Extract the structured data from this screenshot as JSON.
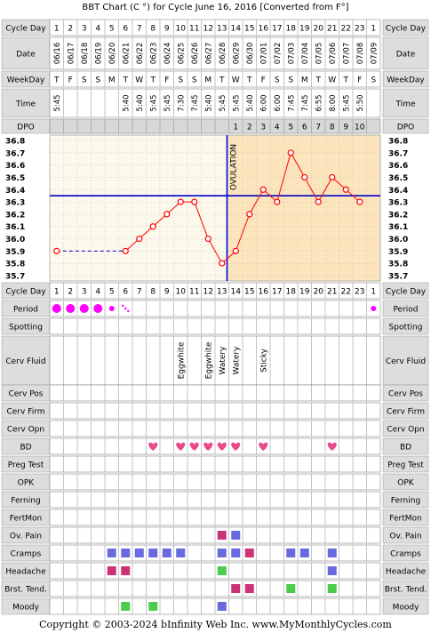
{
  "title": "BBT Chart (C °) for Cycle June 16, 2016  [Converted from F°]",
  "footer": "Copyright © 2003-2024 bInfinity Web Inc.     www.MyMonthlyCycles.com",
  "row_labels": {
    "cycle_day": "Cycle Day",
    "date": "Date",
    "weekday": "WeekDay",
    "time": "Time",
    "dpo": "DPO",
    "period": "Period",
    "spotting": "Spotting",
    "cerv_fluid": "Cerv Fluid",
    "cerv_pos": "Cerv Pos",
    "cerv_firm": "Cerv Firm",
    "cerv_opn": "Cerv Opn",
    "bd": "BD",
    "preg_test": "Preg Test",
    "opk": "OPK",
    "ferning": "Ferning",
    "fertmon": "FertMon",
    "ov_pain": "Ov. Pain",
    "cramps": "Cramps",
    "headache": "Headache",
    "brst_tend": "Brst. Tend.",
    "moody": "Moody"
  },
  "ovulation_label": "OVULATION",
  "colors": {
    "line": "#ff0000",
    "dot_fill": "#ffffff",
    "pre_bg": "#fdf8ec",
    "post_bg": "#fce5bd",
    "coverline": "#0000cc",
    "grid": "#aaaaaa",
    "period": "#ff00ff",
    "heart": "#e84a8a",
    "cramps": "#6a6adf",
    "crimson_sq": "#cc3377",
    "green_sq": "#4ccc4c",
    "label_bg": "#dddddd"
  },
  "chart_data": {
    "type": "line",
    "cycle_days": [
      "1",
      "2",
      "3",
      "4",
      "5",
      "6",
      "7",
      "8",
      "9",
      "10",
      "11",
      "12",
      "13",
      "14",
      "15",
      "16",
      "17",
      "18",
      "19",
      "20",
      "21",
      "22",
      "23",
      "1"
    ],
    "dates": [
      "06/16",
      "06/17",
      "06/18",
      "06/19",
      "06/20",
      "06/21",
      "06/22",
      "06/23",
      "06/24",
      "06/25",
      "06/26",
      "06/27",
      "06/28",
      "06/29",
      "06/30",
      "07/01",
      "07/02",
      "07/03",
      "07/04",
      "07/05",
      "07/06",
      "07/07",
      "07/08",
      "07/09"
    ],
    "weekdays": [
      "T",
      "F",
      "S",
      "S",
      "M",
      "T",
      "W",
      "T",
      "F",
      "S",
      "S",
      "M",
      "T",
      "W",
      "T",
      "F",
      "S",
      "S",
      "M",
      "T",
      "W",
      "T",
      "F",
      "S"
    ],
    "times": [
      "5:45",
      "",
      "",
      "",
      "",
      "5:40",
      "5:40",
      "5:45",
      "5:45",
      "7:30",
      "7:45",
      "5:40",
      "5:45",
      "5:45",
      "5:40",
      "6:00",
      "6:00",
      "7:45",
      "7:45",
      "6:55",
      "8:00",
      "5:45",
      "5:50",
      ""
    ],
    "dpo": [
      "",
      "",
      "",
      "",
      "",
      "",
      "",
      "",
      "",
      "",
      "",
      "",
      "",
      "1",
      "2",
      "3",
      "4",
      "5",
      "6",
      "7",
      "8",
      "9",
      "10",
      ""
    ],
    "temps": [
      35.9,
      null,
      null,
      null,
      null,
      35.9,
      36.0,
      36.1,
      36.2,
      36.3,
      36.3,
      36.0,
      35.8,
      35.9,
      36.2,
      36.4,
      36.3,
      36.7,
      36.5,
      36.3,
      36.5,
      36.4,
      36.3,
      null
    ],
    "y_ticks": [
      "36.8",
      "36.7",
      "36.6",
      "36.5",
      "36.4",
      "36.3",
      "36.2",
      "36.1",
      "36.0",
      "35.9",
      "35.8",
      "35.7"
    ],
    "ylim": [
      35.7,
      36.8
    ],
    "coverline": 36.35,
    "ovulation_day_index": 12,
    "interpolated_span": [
      0,
      5
    ],
    "period": [
      "large",
      "large",
      "large",
      "large",
      "small",
      "spotting",
      "",
      "",
      "",
      "",
      "",
      "",
      "",
      "",
      "",
      "",
      "",
      "",
      "",
      "",
      "",
      "",
      "",
      "small"
    ],
    "cerv_fluid": [
      "",
      "",
      "",
      "",
      "",
      "",
      "",
      "",
      "",
      "Eggwhite",
      "",
      "Eggwhite",
      "Watery",
      "Watery",
      "",
      "Sticky",
      "",
      "",
      "",
      "",
      "",
      "",
      "",
      ""
    ],
    "bd": [
      8,
      10,
      11,
      12,
      13,
      14,
      16,
      21
    ],
    "ov_pain": [
      {
        "day": 13,
        "c": "crimson_sq"
      },
      {
        "day": 14,
        "c": "cramps"
      }
    ],
    "cramps": [
      {
        "day": 5,
        "c": "cramps"
      },
      {
        "day": 6,
        "c": "cramps"
      },
      {
        "day": 7,
        "c": "cramps"
      },
      {
        "day": 8,
        "c": "cramps"
      },
      {
        "day": 9,
        "c": "cramps"
      },
      {
        "day": 10,
        "c": "cramps"
      },
      {
        "day": 13,
        "c": "cramps"
      },
      {
        "day": 14,
        "c": "cramps"
      },
      {
        "day": 15,
        "c": "crimson_sq"
      },
      {
        "day": 18,
        "c": "cramps"
      },
      {
        "day": 19,
        "c": "cramps"
      },
      {
        "day": 21,
        "c": "cramps"
      }
    ],
    "headache": [
      {
        "day": 5,
        "c": "crimson_sq"
      },
      {
        "day": 6,
        "c": "crimson_sq"
      },
      {
        "day": 13,
        "c": "green_sq"
      },
      {
        "day": 21,
        "c": "cramps"
      }
    ],
    "brst_tend": [
      {
        "day": 14,
        "c": "crimson_sq"
      },
      {
        "day": 15,
        "c": "crimson_sq"
      },
      {
        "day": 18,
        "c": "green_sq"
      },
      {
        "day": 21,
        "c": "green_sq"
      }
    ],
    "moody": [
      {
        "day": 6,
        "c": "green_sq"
      },
      {
        "day": 8,
        "c": "green_sq"
      },
      {
        "day": 13,
        "c": "cramps"
      }
    ]
  }
}
